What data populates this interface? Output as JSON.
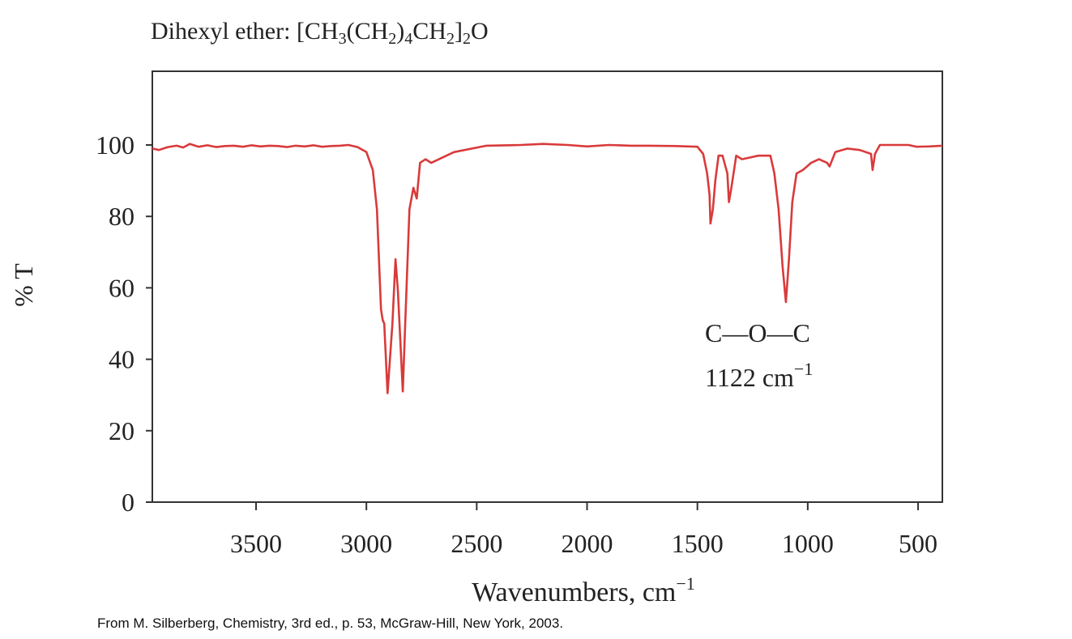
{
  "chart_data": {
    "type": "line",
    "title_parts": [
      {
        "text": "Dihexyl ether: [CH",
        "sub": false
      },
      {
        "text": "3",
        "sub": true
      },
      {
        "text": "(CH",
        "sub": false
      },
      {
        "text": "2",
        "sub": true
      },
      {
        "text": ")",
        "sub": false
      },
      {
        "text": "4",
        "sub": true
      },
      {
        "text": "CH",
        "sub": false
      },
      {
        "text": "2",
        "sub": true
      },
      {
        "text": "]",
        "sub": false
      },
      {
        "text": "2",
        "sub": true
      },
      {
        "text": "O",
        "sub": false
      }
    ],
    "xlabel": "Wavenumbers, cm",
    "xlabel_sup": "−1",
    "ylabel": "% T",
    "xlim": [
      3970,
      390
    ],
    "ylim": [
      0,
      120
    ],
    "xticks": [
      3500,
      3000,
      2500,
      2000,
      1500,
      1000,
      500
    ],
    "yticks": [
      0,
      20,
      40,
      60,
      80,
      100
    ],
    "grid": false,
    "line_color": "#d93a3a",
    "series": [
      {
        "x": [
          3970,
          3940,
          3900,
          3860,
          3830,
          3800,
          3760,
          3720,
          3680,
          3640,
          3600,
          3560,
          3520,
          3480,
          3440,
          3400,
          3360,
          3320,
          3280,
          3240,
          3200,
          3160,
          3120,
          3081,
          3040,
          3000,
          2971,
          2952,
          2934,
          2926,
          2919,
          2904,
          2882,
          2868,
          2857,
          2835,
          2824,
          2805,
          2787,
          2772,
          2757,
          2732,
          2706,
          2603,
          2456,
          2300,
          2200,
          2088,
          2000,
          1900,
          1800,
          1721,
          1600,
          1500,
          1474,
          1456,
          1445,
          1441,
          1430,
          1419,
          1404,
          1386,
          1364,
          1357,
          1346,
          1324,
          1298,
          1260,
          1224,
          1169,
          1151,
          1132,
          1114,
          1099,
          1085,
          1070,
          1051,
          1022,
          985,
          949,
          912,
          901,
          875,
          820,
          765,
          713,
          706,
          695,
          673,
          600,
          544,
          507,
          450,
          390
        ],
        "y": [
          99,
          98.6,
          99.4,
          99.8,
          99.3,
          100.3,
          99.5,
          99.9,
          99.4,
          99.7,
          99.8,
          99.5,
          99.9,
          99.6,
          99.8,
          99.7,
          99.4,
          99.8,
          99.6,
          99.9,
          99.5,
          99.7,
          99.8,
          100,
          99.4,
          98,
          93,
          82,
          54,
          51,
          50,
          30.5,
          50,
          68,
          59,
          31,
          50,
          82,
          88,
          85,
          95,
          96,
          95,
          98,
          99.8,
          100,
          100.3,
          100,
          99.6,
          100,
          99.8,
          99.8,
          99.7,
          99.5,
          97.5,
          92,
          86,
          78,
          82,
          90,
          97,
          97,
          92,
          84,
          88,
          97,
          96,
          96.5,
          97,
          97,
          92,
          82,
          66,
          56,
          68,
          84,
          92,
          93,
          95,
          96,
          95,
          94,
          98,
          99,
          98.6,
          97.5,
          93,
          97.5,
          100,
          100,
          100,
          99.5,
          99.6,
          99.8
        ]
      }
    ],
    "annotations": [
      {
        "line1": "C—O—C",
        "line2": "1122 cm",
        "line2_sup": "−1"
      }
    ]
  },
  "footer": "From M. Silberberg, Chemistry, 3rd ed., p. 53, McGraw-Hill, New York, 2003."
}
